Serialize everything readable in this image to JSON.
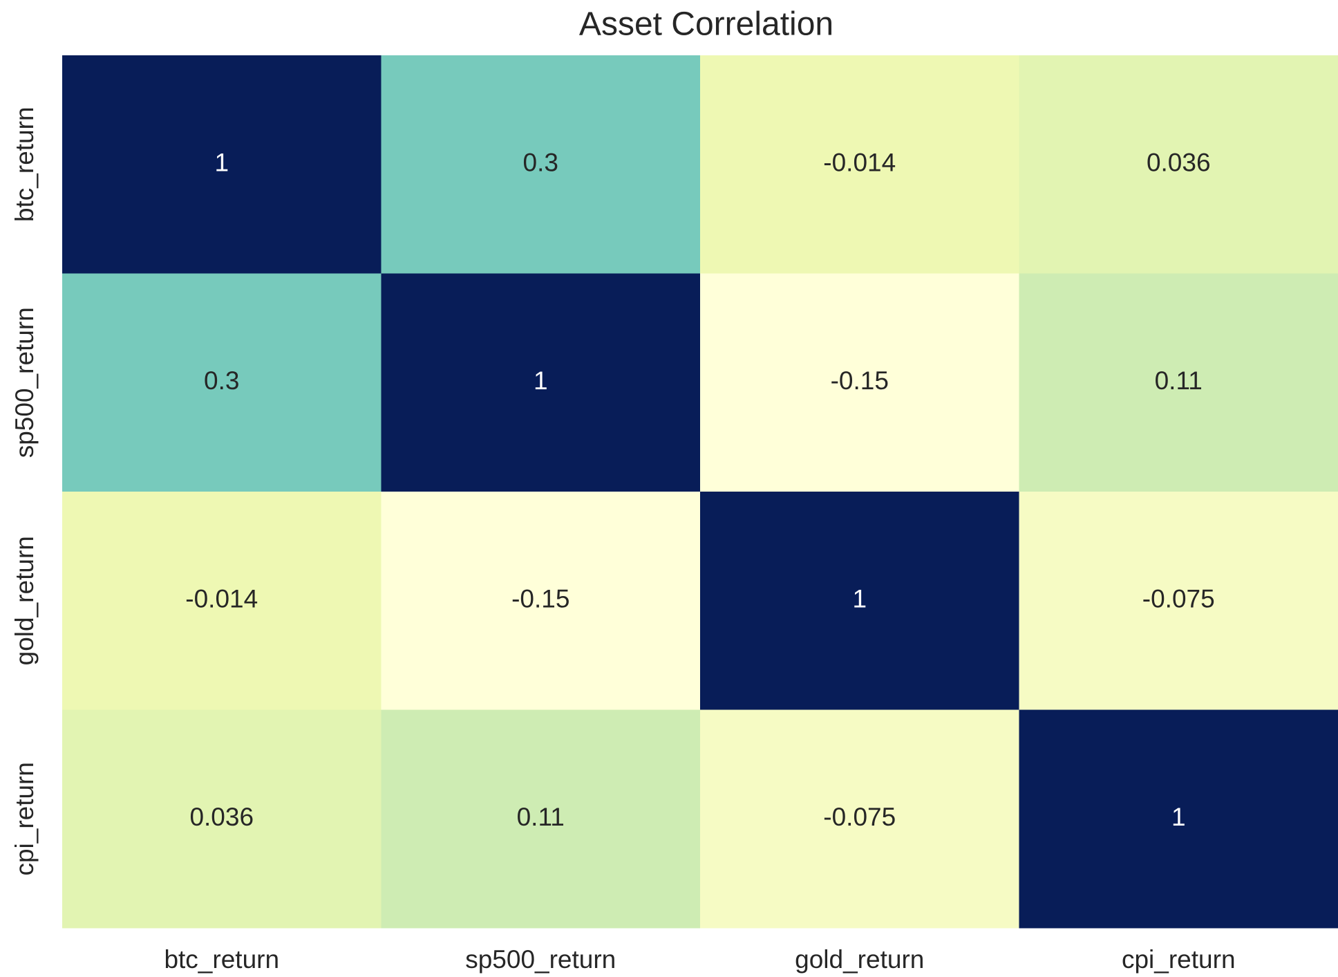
{
  "chart_data": {
    "type": "heatmap",
    "title": "Asset Correlation",
    "x_categories": [
      "btc_return",
      "sp500_return",
      "gold_return",
      "cpi_return"
    ],
    "y_categories": [
      "btc_return",
      "sp500_return",
      "gold_return",
      "cpi_return"
    ],
    "values": [
      [
        1,
        0.3,
        -0.014,
        0.036
      ],
      [
        0.3,
        1,
        -0.15,
        0.11
      ],
      [
        -0.014,
        -0.15,
        1,
        -0.075
      ],
      [
        0.036,
        0.11,
        -0.075,
        1
      ]
    ],
    "colormap": "YlGnBu"
  }
}
